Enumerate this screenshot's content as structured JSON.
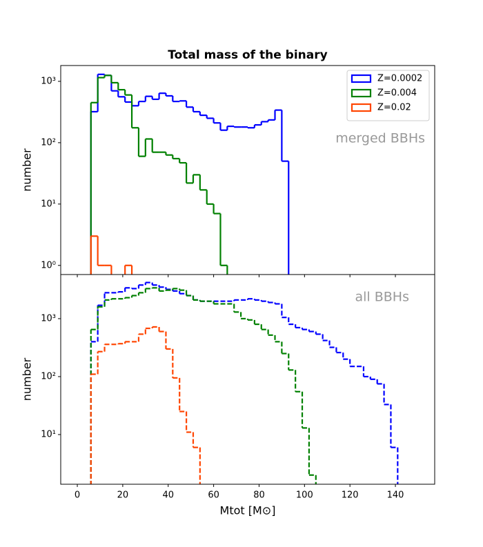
{
  "chart_data": [
    {
      "type": "histogram",
      "title": "Total mass of the binary",
      "ylabel": "number",
      "annotation": "merged BBHs",
      "yscale": "log",
      "linestyle": "solid",
      "legend": "upper right",
      "xlim": [
        -7.3,
        157.3
      ],
      "xticks": [
        0,
        20,
        40,
        60,
        80,
        100,
        120,
        140
      ],
      "ylim": [
        0.71,
        1810
      ],
      "yticks": [
        {
          "value": 1,
          "label": "10⁰"
        },
        {
          "value": 10,
          "label": "10¹"
        },
        {
          "value": 100,
          "label": "10²"
        },
        {
          "value": 1000,
          "label": "10³"
        }
      ],
      "bins": [
        6,
        9,
        12,
        15,
        18,
        21,
        24,
        27,
        30,
        33,
        36,
        39,
        42,
        45,
        48,
        51,
        54,
        57,
        60,
        63,
        66,
        69,
        72,
        75,
        78,
        81,
        84,
        87,
        90,
        93,
        96,
        99,
        102,
        105,
        108,
        111,
        114,
        117,
        120,
        123,
        126,
        129,
        132,
        135,
        138,
        141
      ],
      "series": [
        {
          "name": "Z=0.0002",
          "color": "#0000ff",
          "values": [
            320,
            1300,
            1250,
            700,
            560,
            460,
            400,
            470,
            570,
            510,
            640,
            580,
            470,
            480,
            380,
            320,
            280,
            250,
            210,
            160,
            185,
            180,
            180,
            175,
            195,
            220,
            235,
            340,
            50,
            0,
            0,
            0,
            0,
            0,
            0,
            0,
            0,
            0,
            0,
            0,
            0,
            0,
            0,
            0,
            0
          ]
        },
        {
          "name": "Z=0.004",
          "color": "#008000",
          "values": [
            450,
            1150,
            1250,
            950,
            730,
            600,
            175,
            60,
            115,
            70,
            70,
            63,
            55,
            47,
            22,
            30,
            17,
            10,
            7,
            1,
            0,
            0,
            0,
            0,
            0,
            0,
            0,
            0,
            0,
            0,
            0,
            0,
            0,
            0,
            0,
            0,
            0,
            0,
            0,
            0,
            0,
            0,
            0,
            0,
            0
          ]
        },
        {
          "name": "Z=0.02",
          "color": "#ff4500",
          "values": [
            3,
            1,
            1,
            0,
            0,
            1,
            0,
            0,
            0,
            0,
            0,
            0,
            0,
            0,
            0,
            0,
            0,
            0,
            0,
            0,
            0,
            0,
            0,
            0,
            0,
            0,
            0,
            0,
            0,
            0,
            0,
            0,
            0,
            0,
            0,
            0,
            0,
            0,
            0,
            0,
            0,
            0,
            0,
            0,
            0
          ]
        }
      ]
    },
    {
      "type": "histogram",
      "xlabel": "Mtot [M⊙]",
      "ylabel": "number",
      "annotation": "all BBHs",
      "yscale": "log",
      "linestyle": "dashed",
      "xlim": [
        -7.3,
        157.3
      ],
      "xticks": [
        0,
        20,
        40,
        60,
        80,
        100,
        120,
        140
      ],
      "ylim": [
        1.39,
        5770
      ],
      "yticks": [
        {
          "value": 10,
          "label": "10¹"
        },
        {
          "value": 100,
          "label": "10²"
        },
        {
          "value": 1000,
          "label": "10³"
        }
      ],
      "bins": [
        6,
        9,
        12,
        15,
        18,
        21,
        24,
        27,
        30,
        33,
        36,
        39,
        42,
        45,
        48,
        51,
        54,
        57,
        60,
        63,
        66,
        69,
        72,
        75,
        78,
        81,
        84,
        87,
        90,
        93,
        96,
        99,
        102,
        105,
        108,
        111,
        114,
        117,
        120,
        123,
        126,
        129,
        132,
        135,
        138,
        141
      ],
      "series": [
        {
          "color": "#0000ff",
          "values": [
            400,
            1700,
            2800,
            2800,
            2900,
            3400,
            3300,
            3800,
            4200,
            3800,
            3500,
            3200,
            3000,
            2700,
            2500,
            2100,
            2000,
            2000,
            2000,
            2000,
            2000,
            2100,
            2100,
            2200,
            2100,
            2000,
            1900,
            1800,
            1050,
            800,
            700,
            650,
            600,
            540,
            420,
            320,
            260,
            200,
            150,
            150,
            100,
            90,
            75,
            33,
            6
          ]
        },
        {
          "color": "#008000",
          "values": [
            650,
            1600,
            2100,
            2200,
            2200,
            2300,
            2500,
            2800,
            3300,
            3400,
            3000,
            3100,
            3300,
            3100,
            2500,
            2100,
            2000,
            2000,
            1800,
            1800,
            1800,
            1300,
            1000,
            950,
            800,
            650,
            520,
            400,
            250,
            130,
            55,
            13,
            2,
            0,
            0,
            0,
            0,
            0,
            0,
            0,
            0,
            0,
            0,
            0,
            0
          ]
        },
        {
          "color": "#ff4500",
          "values": [
            110,
            270,
            360,
            360,
            370,
            400,
            400,
            540,
            680,
            720,
            600,
            300,
            95,
            25,
            11,
            6,
            0,
            0,
            0,
            0,
            0,
            0,
            0,
            0,
            0,
            0,
            0,
            0,
            0,
            0,
            0,
            0,
            0,
            0,
            0,
            0,
            0,
            0,
            0,
            0,
            0,
            0,
            0,
            0,
            0
          ]
        }
      ]
    }
  ]
}
